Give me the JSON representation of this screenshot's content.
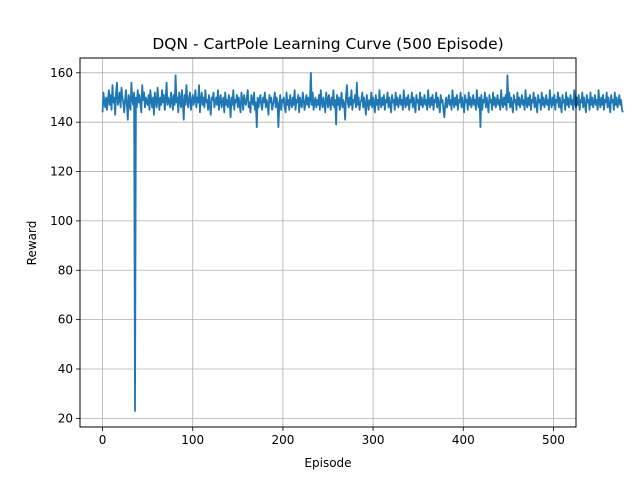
{
  "chart_data": {
    "type": "line",
    "title": "DQN - CartPole Learning Curve (500 Episode)",
    "xlabel": "Episode",
    "ylabel": "Reward",
    "xlim": [
      -25,
      525
    ],
    "ylim": [
      16.5,
      166
    ],
    "xticks": [
      0,
      100,
      200,
      300,
      400,
      500
    ],
    "yticks": [
      20,
      40,
      60,
      80,
      100,
      120,
      140,
      160
    ],
    "grid": true,
    "series": [
      {
        "color": "#1f77b4",
        "x_start": 0,
        "x_step": 1,
        "values": [
          144,
          152,
          148,
          146,
          150,
          145,
          149,
          153,
          147,
          151,
          145,
          155,
          148,
          150,
          143,
          152,
          156,
          147,
          149,
          152,
          146,
          154,
          150,
          148,
          144,
          149,
          153,
          147,
          141,
          151,
          148,
          145,
          156,
          149,
          147,
          152,
          23,
          150,
          146,
          153,
          148,
          151,
          147,
          144,
          155,
          149,
          152,
          146,
          150,
          148,
          147,
          151,
          145,
          153,
          149,
          146,
          150,
          143,
          152,
          148,
          146,
          154,
          149,
          145,
          150,
          147,
          153,
          148,
          151,
          145,
          149,
          156,
          147,
          150,
          148,
          146,
          152,
          149,
          145,
          151,
          147,
          159,
          148,
          150,
          144,
          152,
          149,
          146,
          153,
          148,
          141,
          151,
          147,
          155,
          149,
          146,
          150,
          152,
          145,
          148,
          151,
          147,
          149,
          153,
          146,
          150,
          148,
          155,
          144,
          149,
          152,
          147,
          150,
          146,
          153,
          148,
          149,
          145,
          151,
          147,
          143,
          150,
          149,
          152,
          146,
          148,
          150,
          147,
          153,
          145,
          149,
          151,
          146,
          148,
          150,
          144,
          152,
          147,
          149,
          146,
          151,
          148,
          142,
          150,
          147,
          153,
          145,
          149,
          148,
          151,
          146,
          150,
          147,
          144,
          152,
          149,
          145,
          151,
          148,
          147,
          150,
          153,
          146,
          148,
          144,
          151,
          149,
          147,
          152,
          145,
          148,
          138,
          150,
          146,
          149,
          151,
          147,
          145,
          150,
          148,
          152,
          146,
          149,
          147,
          143,
          151,
          148,
          150,
          145,
          147,
          149,
          152,
          146,
          150,
          148,
          138,
          147,
          151,
          145,
          149,
          148,
          150,
          146,
          144,
          152,
          147,
          149,
          145,
          151,
          148,
          146,
          150,
          147,
          153,
          145,
          149,
          148,
          151,
          144,
          150,
          147,
          146,
          152,
          149,
          145,
          148,
          151,
          147,
          150,
          146,
          149,
          160,
          147,
          152,
          145,
          148,
          150,
          146,
          149,
          147,
          151,
          145,
          153,
          148,
          146,
          150,
          147,
          144,
          152,
          149,
          146,
          151,
          148,
          145,
          150,
          147,
          153,
          146,
          149,
          139,
          151,
          147,
          150,
          145,
          148,
          152,
          146,
          149,
          147,
          141,
          151,
          155,
          148,
          146,
          150,
          147,
          153,
          145,
          149,
          148,
          151,
          146,
          156,
          147,
          150,
          145,
          148,
          149,
          152,
          146,
          150,
          147,
          143,
          151,
          148,
          145,
          149,
          147,
          152,
          146,
          150,
          148,
          144,
          151,
          147,
          149,
          145,
          153,
          148,
          146,
          150,
          147,
          151,
          145,
          149,
          148,
          152,
          146,
          150,
          147,
          144,
          151,
          148,
          149,
          145,
          152,
          147,
          150,
          146,
          148,
          151,
          147,
          149,
          145,
          153,
          148,
          146,
          150,
          147,
          151,
          145,
          149,
          148,
          152,
          146,
          150,
          147,
          144,
          151,
          148,
          149,
          145,
          152,
          147,
          150,
          146,
          148,
          151,
          147,
          149,
          145,
          153,
          148,
          146,
          150,
          147,
          151,
          145,
          149,
          148,
          152,
          146,
          150,
          147,
          144,
          151,
          148,
          149,
          145,
          142,
          147,
          150,
          146,
          148,
          151,
          147,
          149,
          145,
          153,
          148,
          146,
          150,
          147,
          151,
          145,
          149,
          148,
          152,
          146,
          150,
          147,
          144,
          151,
          148,
          149,
          145,
          152,
          147,
          150,
          146,
          148,
          151,
          147,
          149,
          145,
          153,
          148,
          146,
          150,
          138,
          151,
          145,
          149,
          148,
          152,
          146,
          150,
          147,
          144,
          151,
          148,
          149,
          145,
          152,
          147,
          150,
          146,
          148,
          151,
          147,
          149,
          145,
          153,
          148,
          146,
          150,
          147,
          151,
          145,
          159,
          148,
          152,
          146,
          150,
          147,
          144,
          151,
          148,
          149,
          145,
          152,
          147,
          150,
          146,
          148,
          151,
          147,
          149,
          145,
          153,
          148,
          146,
          150,
          147,
          151,
          145,
          149,
          148,
          152,
          146,
          150,
          147,
          144,
          151,
          148,
          149,
          145,
          152,
          147,
          150,
          146,
          148,
          151,
          147,
          149,
          145,
          153,
          148,
          146,
          150,
          147,
          151,
          145,
          149,
          148,
          152,
          146,
          150,
          147,
          144,
          151,
          148,
          149,
          145,
          152,
          147,
          150,
          146,
          148,
          151,
          147,
          149,
          145,
          153,
          148,
          146,
          150,
          147,
          151,
          145,
          149,
          148,
          152,
          146,
          150,
          147,
          144,
          151,
          148,
          149,
          145,
          152,
          147,
          150,
          146,
          148,
          151,
          147,
          149,
          145,
          153,
          148,
          146,
          150,
          147,
          151,
          145,
          149,
          148,
          152,
          146,
          150,
          147,
          144,
          151,
          148,
          149,
          145,
          152,
          147,
          150,
          146,
          148,
          151,
          147,
          149,
          145,
          144
        ]
      }
    ]
  }
}
